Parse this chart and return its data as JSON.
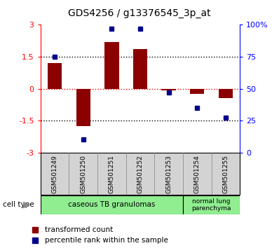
{
  "title": "GDS4256 / g13376545_3p_at",
  "samples": [
    "GSM501249",
    "GSM501250",
    "GSM501251",
    "GSM501252",
    "GSM501253",
    "GSM501254",
    "GSM501255"
  ],
  "transformed_count": [
    1.2,
    -1.75,
    2.2,
    1.85,
    -0.08,
    -0.25,
    -0.45
  ],
  "percentile_rank": [
    75,
    10,
    97,
    97,
    47,
    35,
    27
  ],
  "bar_color": "#8B0000",
  "dot_color": "#00008B",
  "ylim_left": [
    -3,
    3
  ],
  "yticks_left": [
    -3,
    -1.5,
    0,
    1.5,
    3
  ],
  "ytick_labels_left": [
    "-3",
    "-1.5",
    "0",
    "1.5",
    "3"
  ],
  "yticks_right": [
    0,
    25,
    50,
    75,
    100
  ],
  "ytick_labels_right": [
    "0",
    "25",
    "50",
    "75",
    "100%"
  ],
  "group1_count": 5,
  "group1_label": "caseous TB granulomas",
  "group2_label": "normal lung\nparenchyma",
  "cell_type_color": "#90EE90",
  "sample_box_color": "#d3d3d3",
  "legend_bar_label": "transformed count",
  "legend_dot_label": "percentile rank within the sample"
}
